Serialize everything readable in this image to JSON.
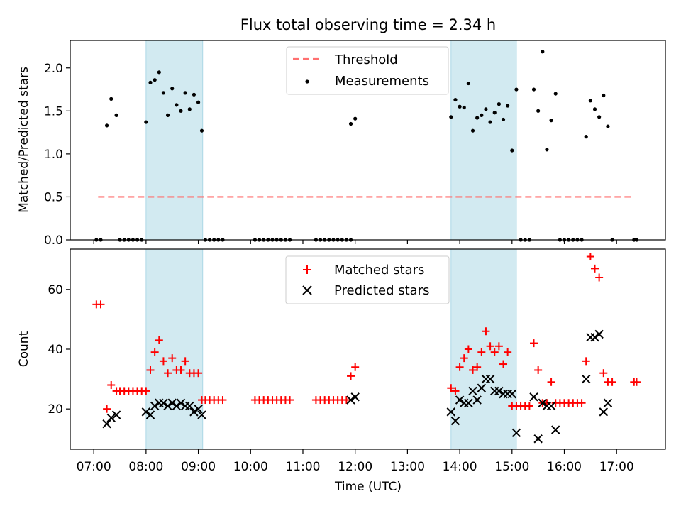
{
  "title": "Flux total observing time = 2.34 h",
  "chart_data": [
    {
      "type": "scatter",
      "panel": "top",
      "ylabel": "Matched/Predicted stars",
      "ylim": [
        0,
        2.32
      ],
      "yticks": [
        0.0,
        0.5,
        1.0,
        1.5,
        2.0
      ],
      "ytick_labels": [
        "0.0",
        "0.5",
        "1.0",
        "1.5",
        "2.0"
      ],
      "shaded_intervals": [
        [
          "08:00",
          "09:05"
        ],
        [
          "13:50",
          "15:05"
        ]
      ],
      "shade_color": "#add8e6",
      "legend_position": "upper center",
      "threshold": {
        "name": "Threshold",
        "y": 0.5,
        "x_range": [
          "07:05",
          "17:20"
        ],
        "color": "#ff7070",
        "style": "dashed"
      },
      "series": [
        {
          "name": "Measurements",
          "color": "#000000",
          "points": [
            [
              "07:03",
              0
            ],
            [
              "07:08",
              0
            ],
            [
              "07:15",
              1.33
            ],
            [
              "07:20",
              1.64
            ],
            [
              "07:26",
              1.45
            ],
            [
              "07:30",
              0
            ],
            [
              "07:35",
              0
            ],
            [
              "07:40",
              0
            ],
            [
              "07:45",
              0
            ],
            [
              "07:50",
              0
            ],
            [
              "07:55",
              0
            ],
            [
              "08:00",
              1.37
            ],
            [
              "08:05",
              1.83
            ],
            [
              "08:10",
              1.86
            ],
            [
              "08:15",
              1.95
            ],
            [
              "08:20",
              1.71
            ],
            [
              "08:25",
              1.45
            ],
            [
              "08:30",
              1.76
            ],
            [
              "08:35",
              1.57
            ],
            [
              "08:40",
              1.5
            ],
            [
              "08:45",
              1.71
            ],
            [
              "08:50",
              1.52
            ],
            [
              "08:55",
              1.69
            ],
            [
              "09:00",
              1.6
            ],
            [
              "09:04",
              1.27
            ],
            [
              "09:08",
              0
            ],
            [
              "09:13",
              0
            ],
            [
              "09:18",
              0
            ],
            [
              "09:23",
              0
            ],
            [
              "09:28",
              0
            ],
            [
              "10:05",
              0
            ],
            [
              "10:10",
              0
            ],
            [
              "10:15",
              0
            ],
            [
              "10:20",
              0
            ],
            [
              "10:25",
              0
            ],
            [
              "10:30",
              0
            ],
            [
              "10:35",
              0
            ],
            [
              "10:40",
              0
            ],
            [
              "10:45",
              0
            ],
            [
              "11:15",
              0
            ],
            [
              "11:20",
              0
            ],
            [
              "11:25",
              0
            ],
            [
              "11:30",
              0
            ],
            [
              "11:35",
              0
            ],
            [
              "11:40",
              0
            ],
            [
              "11:45",
              0
            ],
            [
              "11:50",
              0
            ],
            [
              "11:55",
              0
            ],
            [
              "11:55",
              1.35
            ],
            [
              "12:00",
              1.41
            ],
            [
              "13:50",
              1.43
            ],
            [
              "13:55",
              1.63
            ],
            [
              "14:00",
              1.55
            ],
            [
              "14:05",
              1.54
            ],
            [
              "14:10",
              1.82
            ],
            [
              "14:15",
              1.27
            ],
            [
              "14:20",
              1.42
            ],
            [
              "14:25",
              1.45
            ],
            [
              "14:30",
              1.52
            ],
            [
              "14:35",
              1.37
            ],
            [
              "14:40",
              1.48
            ],
            [
              "14:45",
              1.58
            ],
            [
              "14:50",
              1.4
            ],
            [
              "14:55",
              1.56
            ],
            [
              "15:00",
              1.04
            ],
            [
              "15:05",
              1.75
            ],
            [
              "15:10",
              0
            ],
            [
              "15:15",
              0
            ],
            [
              "15:20",
              0
            ],
            [
              "15:25",
              1.75
            ],
            [
              "15:30",
              1.5
            ],
            [
              "15:35",
              2.19
            ],
            [
              "15:40",
              1.05
            ],
            [
              "15:45",
              1.39
            ],
            [
              "15:50",
              1.7
            ],
            [
              "15:55",
              0
            ],
            [
              "16:00",
              0
            ],
            [
              "16:05",
              0
            ],
            [
              "16:10",
              0
            ],
            [
              "16:15",
              0
            ],
            [
              "16:20",
              0
            ],
            [
              "16:25",
              1.2
            ],
            [
              "16:30",
              1.62
            ],
            [
              "16:35",
              1.52
            ],
            [
              "16:40",
              1.43
            ],
            [
              "16:45",
              1.68
            ],
            [
              "16:50",
              1.32
            ],
            [
              "16:55",
              0
            ],
            [
              "17:20",
              0
            ],
            [
              "17:23",
              0
            ]
          ]
        }
      ]
    },
    {
      "type": "scatter",
      "panel": "bottom",
      "ylabel": "Count",
      "xlabel": "Time (UTC)",
      "ylim": [
        6.5,
        73.5
      ],
      "yticks": [
        20,
        40,
        60
      ],
      "ytick_labels": [
        "20",
        "40",
        "60"
      ],
      "xlim": [
        "06:33",
        "17:56"
      ],
      "xticks": [
        "07:00",
        "08:00",
        "09:00",
        "10:00",
        "11:00",
        "12:00",
        "13:00",
        "14:00",
        "15:00",
        "16:00",
        "17:00"
      ],
      "xtick_labels": [
        "07:00",
        "08:00",
        "09:00",
        "10:00",
        "11:00",
        "12:00",
        "13:00",
        "14:00",
        "15:00",
        "16:00",
        "17:00"
      ],
      "shaded_intervals": [
        [
          "08:00",
          "09:05"
        ],
        [
          "13:50",
          "15:05"
        ]
      ],
      "shade_color": "#add8e6",
      "legend_position": "upper center",
      "series": [
        {
          "name": "Matched stars",
          "marker": "plus",
          "color": "#ff0000",
          "points": [
            [
              "07:03",
              55
            ],
            [
              "07:08",
              55
            ],
            [
              "07:15",
              20
            ],
            [
              "07:20",
              28
            ],
            [
              "07:26",
              26
            ],
            [
              "07:30",
              26
            ],
            [
              "07:35",
              26
            ],
            [
              "07:40",
              26
            ],
            [
              "07:45",
              26
            ],
            [
              "07:50",
              26
            ],
            [
              "07:55",
              26
            ],
            [
              "08:00",
              26
            ],
            [
              "08:05",
              33
            ],
            [
              "08:10",
              39
            ],
            [
              "08:15",
              43
            ],
            [
              "08:20",
              36
            ],
            [
              "08:25",
              32
            ],
            [
              "08:30",
              37
            ],
            [
              "08:35",
              33
            ],
            [
              "08:40",
              33
            ],
            [
              "08:45",
              36
            ],
            [
              "08:50",
              32
            ],
            [
              "08:55",
              32
            ],
            [
              "09:00",
              32
            ],
            [
              "09:04",
              23
            ],
            [
              "09:08",
              23
            ],
            [
              "09:13",
              23
            ],
            [
              "09:18",
              23
            ],
            [
              "09:23",
              23
            ],
            [
              "09:28",
              23
            ],
            [
              "10:05",
              23
            ],
            [
              "10:10",
              23
            ],
            [
              "10:15",
              23
            ],
            [
              "10:20",
              23
            ],
            [
              "10:25",
              23
            ],
            [
              "10:30",
              23
            ],
            [
              "10:35",
              23
            ],
            [
              "10:40",
              23
            ],
            [
              "10:45",
              23
            ],
            [
              "11:15",
              23
            ],
            [
              "11:20",
              23
            ],
            [
              "11:25",
              23
            ],
            [
              "11:30",
              23
            ],
            [
              "11:35",
              23
            ],
            [
              "11:40",
              23
            ],
            [
              "11:45",
              23
            ],
            [
              "11:50",
              23
            ],
            [
              "11:55",
              31
            ],
            [
              "12:00",
              34
            ],
            [
              "13:50",
              27
            ],
            [
              "13:55",
              26
            ],
            [
              "14:00",
              34
            ],
            [
              "14:05",
              37
            ],
            [
              "14:10",
              40
            ],
            [
              "14:15",
              33
            ],
            [
              "14:20",
              34
            ],
            [
              "14:25",
              39
            ],
            [
              "14:30",
              46
            ],
            [
              "14:35",
              41
            ],
            [
              "14:40",
              39
            ],
            [
              "14:45",
              41
            ],
            [
              "14:50",
              35
            ],
            [
              "14:55",
              39
            ],
            [
              "15:00",
              21
            ],
            [
              "15:05",
              21
            ],
            [
              "15:10",
              21
            ],
            [
              "15:15",
              21
            ],
            [
              "15:20",
              21
            ],
            [
              "15:25",
              42
            ],
            [
              "15:30",
              33
            ],
            [
              "15:35",
              22
            ],
            [
              "15:40",
              22
            ],
            [
              "15:45",
              29
            ],
            [
              "15:50",
              22
            ],
            [
              "15:55",
              22
            ],
            [
              "16:00",
              22
            ],
            [
              "16:05",
              22
            ],
            [
              "16:10",
              22
            ],
            [
              "16:15",
              22
            ],
            [
              "16:20",
              22
            ],
            [
              "16:25",
              36
            ],
            [
              "16:30",
              71
            ],
            [
              "16:35",
              67
            ],
            [
              "16:40",
              64
            ],
            [
              "16:45",
              32
            ],
            [
              "16:50",
              29
            ],
            [
              "16:55",
              29
            ],
            [
              "17:20",
              29
            ],
            [
              "17:23",
              29
            ]
          ]
        },
        {
          "name": "Predicted stars",
          "marker": "x",
          "color": "#000000",
          "points": [
            [
              "07:15",
              15
            ],
            [
              "07:20",
              17
            ],
            [
              "07:26",
              18
            ],
            [
              "08:00",
              19
            ],
            [
              "08:05",
              18
            ],
            [
              "08:10",
              21
            ],
            [
              "08:15",
              22
            ],
            [
              "08:20",
              22
            ],
            [
              "08:25",
              21
            ],
            [
              "08:30",
              22
            ],
            [
              "08:35",
              21
            ],
            [
              "08:40",
              22
            ],
            [
              "08:45",
              21
            ],
            [
              "08:50",
              21
            ],
            [
              "08:55",
              19
            ],
            [
              "09:00",
              20
            ],
            [
              "09:04",
              18
            ],
            [
              "11:55",
              23
            ],
            [
              "12:00",
              24
            ],
            [
              "13:50",
              19
            ],
            [
              "13:55",
              16
            ],
            [
              "14:00",
              23
            ],
            [
              "14:05",
              22
            ],
            [
              "14:10",
              22
            ],
            [
              "14:15",
              26
            ],
            [
              "14:20",
              23
            ],
            [
              "14:25",
              27
            ],
            [
              "14:30",
              30
            ],
            [
              "14:35",
              30
            ],
            [
              "14:40",
              26
            ],
            [
              "14:45",
              26
            ],
            [
              "14:50",
              25
            ],
            [
              "14:55",
              25
            ],
            [
              "15:00",
              25
            ],
            [
              "15:05",
              12
            ],
            [
              "15:25",
              24
            ],
            [
              "15:30",
              10
            ],
            [
              "15:35",
              22
            ],
            [
              "15:40",
              21
            ],
            [
              "15:45",
              21
            ],
            [
              "15:50",
              13
            ],
            [
              "16:25",
              30
            ],
            [
              "16:30",
              44
            ],
            [
              "16:35",
              44
            ],
            [
              "16:40",
              45
            ],
            [
              "16:45",
              19
            ],
            [
              "16:50",
              22
            ]
          ]
        }
      ]
    }
  ]
}
